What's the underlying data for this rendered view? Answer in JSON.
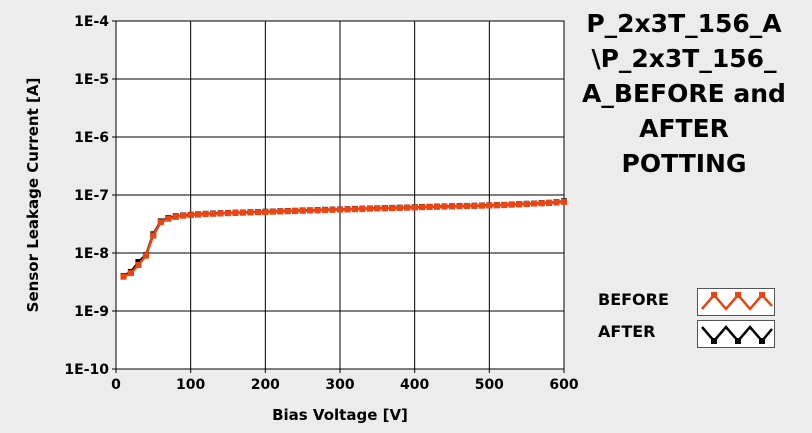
{
  "chart_data": {
    "type": "line",
    "title": "P_2x3T_156_A\n\\P_2x3T_156_\nA_BEFORE and\nAFTER\nPOTTING",
    "xlabel": "Bias Voltage [V]",
    "ylabel": "Sensor Leakage Current [A]",
    "xlim": [
      0,
      600
    ],
    "ylim": [
      1e-10,
      0.0001
    ],
    "yscale": "log",
    "grid": true,
    "legend_position": "bottom-right",
    "x_ticks": [
      {
        "value": 0,
        "label": "0"
      },
      {
        "value": 100,
        "label": "100"
      },
      {
        "value": 200,
        "label": "200"
      },
      {
        "value": 300,
        "label": "300"
      },
      {
        "value": 400,
        "label": "400"
      },
      {
        "value": 500,
        "label": "500"
      },
      {
        "value": 600,
        "label": "600"
      }
    ],
    "y_ticks": [
      {
        "value": 1e-10,
        "label": "1E-10"
      },
      {
        "value": 1e-09,
        "label": "1E-9"
      },
      {
        "value": 1e-08,
        "label": "1E-8"
      },
      {
        "value": 1e-07,
        "label": "1E-7"
      },
      {
        "value": 1e-06,
        "label": "1E-6"
      },
      {
        "value": 1e-05,
        "label": "1E-5"
      },
      {
        "value": 0.0001,
        "label": "1E-4"
      }
    ],
    "series": [
      {
        "name": "BEFORE",
        "color": "#ee4411",
        "x": [
          10,
          20,
          30,
          40,
          50,
          60,
          70,
          80,
          90,
          100,
          110,
          120,
          130,
          140,
          150,
          160,
          170,
          180,
          190,
          200,
          210,
          220,
          230,
          240,
          250,
          260,
          270,
          280,
          290,
          300,
          310,
          320,
          330,
          340,
          350,
          360,
          370,
          380,
          390,
          400,
          410,
          420,
          430,
          440,
          450,
          460,
          470,
          480,
          490,
          500,
          510,
          520,
          530,
          540,
          550,
          560,
          570,
          580,
          590,
          600
        ],
        "y": [
          3.9e-09,
          4.5e-09,
          6.2e-09,
          9e-09,
          2e-08,
          3.4e-08,
          3.9e-08,
          4.2e-08,
          4.4e-08,
          4.5e-08,
          4.6e-08,
          4.7e-08,
          4.75e-08,
          4.8e-08,
          4.85e-08,
          4.9e-08,
          4.95e-08,
          5e-08,
          5.05e-08,
          5.1e-08,
          5.15e-08,
          5.2e-08,
          5.25e-08,
          5.3e-08,
          5.35e-08,
          5.4e-08,
          5.45e-08,
          5.5e-08,
          5.55e-08,
          5.6e-08,
          5.65e-08,
          5.7e-08,
          5.75e-08,
          5.8e-08,
          5.85e-08,
          5.9e-08,
          5.95e-08,
          6e-08,
          6.05e-08,
          6.1e-08,
          6.15e-08,
          6.2e-08,
          6.25e-08,
          6.3e-08,
          6.35e-08,
          6.4e-08,
          6.45e-08,
          6.5e-08,
          6.55e-08,
          6.6e-08,
          6.65e-08,
          6.7e-08,
          6.8e-08,
          6.9e-08,
          7e-08,
          7.1e-08,
          7.2e-08,
          7.3e-08,
          7.4e-08,
          7.6e-08
        ]
      },
      {
        "name": "AFTER",
        "color": "#000000",
        "x": [
          10,
          20,
          30,
          40,
          50,
          60,
          70,
          80,
          90,
          100,
          110,
          120,
          130,
          140,
          150,
          160,
          170,
          180,
          190,
          200,
          210,
          220,
          230,
          240,
          250,
          260,
          270,
          280,
          290,
          300,
          310,
          320,
          330,
          340,
          350,
          360,
          370,
          380,
          390,
          400,
          410,
          420,
          430,
          440,
          450,
          460,
          470,
          480,
          490,
          500,
          510,
          520,
          530,
          540,
          550,
          560,
          570,
          580,
          590,
          600
        ],
        "y": [
          4e-09,
          4.7e-09,
          7e-09,
          9.2e-09,
          2.1e-08,
          3.5e-08,
          4e-08,
          4.3e-08,
          4.45e-08,
          4.55e-08,
          4.65e-08,
          4.75e-08,
          4.8e-08,
          4.85e-08,
          4.9e-08,
          4.95e-08,
          5e-08,
          5.05e-08,
          5.1e-08,
          5.15e-08,
          5.2e-08,
          5.25e-08,
          5.3e-08,
          5.35e-08,
          5.4e-08,
          5.45e-08,
          5.5e-08,
          5.55e-08,
          5.6e-08,
          5.65e-08,
          5.7e-08,
          5.75e-08,
          5.8e-08,
          5.85e-08,
          5.9e-08,
          5.95e-08,
          6e-08,
          6.05e-08,
          6.1e-08,
          6.15e-08,
          6.2e-08,
          6.25e-08,
          6.3e-08,
          6.35e-08,
          6.4e-08,
          6.45e-08,
          6.5e-08,
          6.55e-08,
          6.6e-08,
          6.65e-08,
          6.7e-08,
          6.75e-08,
          6.85e-08,
          6.95e-08,
          7.05e-08,
          7.15e-08,
          7.25e-08,
          7.35e-08,
          7.5e-08,
          7.8e-08
        ]
      }
    ]
  },
  "legend": {
    "items": [
      {
        "label": "BEFORE",
        "color": "#ee4411",
        "icon": "wave-orange-icon"
      },
      {
        "label": "AFTER",
        "color": "#000000",
        "icon": "wave-black-icon"
      }
    ]
  }
}
